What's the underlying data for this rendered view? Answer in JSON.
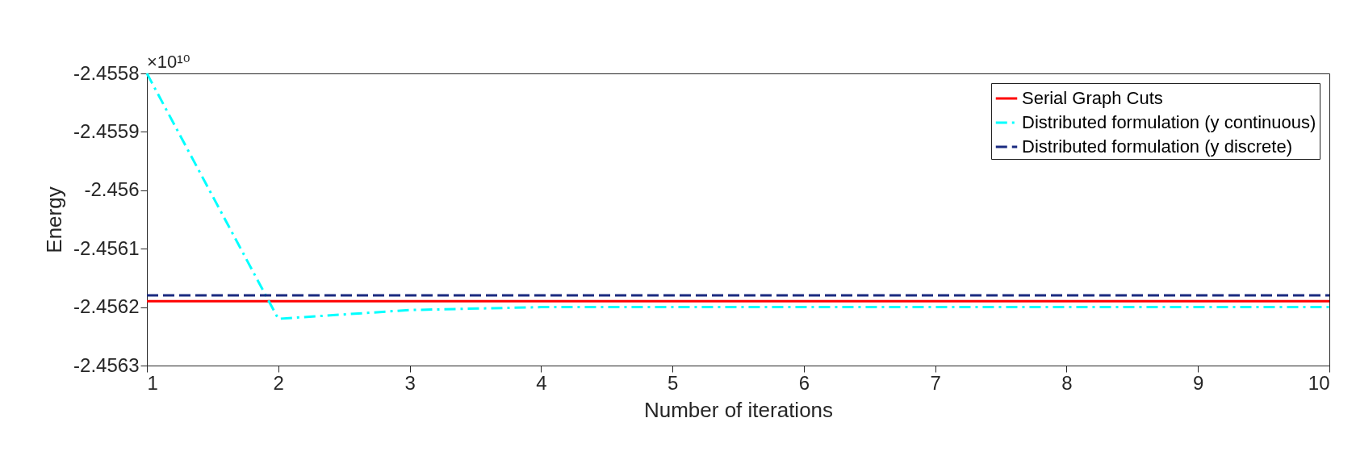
{
  "chart_data": {
    "type": "line",
    "xlabel": "Number of iterations",
    "ylabel": "Energy",
    "annotations": [
      "×10¹⁰"
    ],
    "x": [
      1,
      2,
      3,
      4,
      5,
      6,
      7,
      8,
      9,
      10
    ],
    "series": [
      {
        "name": "Serial Graph Cuts",
        "color": "#ff0000",
        "line_style": "solid",
        "values": [
          -2.45619,
          -2.45619,
          -2.45619,
          -2.45619,
          -2.45619,
          -2.45619,
          -2.45619,
          -2.45619,
          -2.45619,
          -2.45619
        ]
      },
      {
        "name": "Distributed formulation (y continuous)",
        "color": "#00ffff",
        "line_style": "dashdot",
        "values": [
          -2.4558,
          -2.45622,
          -2.456205,
          -2.4562,
          -2.4562,
          -2.4562,
          -2.4562,
          -2.4562,
          -2.4562,
          -2.4562
        ]
      },
      {
        "name": "Distributed formulation (y discrete)",
        "color": "#1a2a80",
        "line_style": "dashed",
        "values": [
          -2.45618,
          -2.45618,
          -2.45618,
          -2.45618,
          -2.45618,
          -2.45618,
          -2.45618,
          -2.45618,
          -2.45618,
          -2.45618
        ]
      }
    ],
    "xlim": [
      1,
      10
    ],
    "xticks": [
      1,
      2,
      3,
      4,
      5,
      6,
      7,
      8,
      9,
      10
    ],
    "ylim": [
      -2.4563,
      -2.4558
    ],
    "yticks": [
      -2.4563,
      -2.4562,
      -2.4561,
      -2.456,
      -2.4559,
      -2.4558
    ],
    "grid": false,
    "legend": "top right"
  }
}
